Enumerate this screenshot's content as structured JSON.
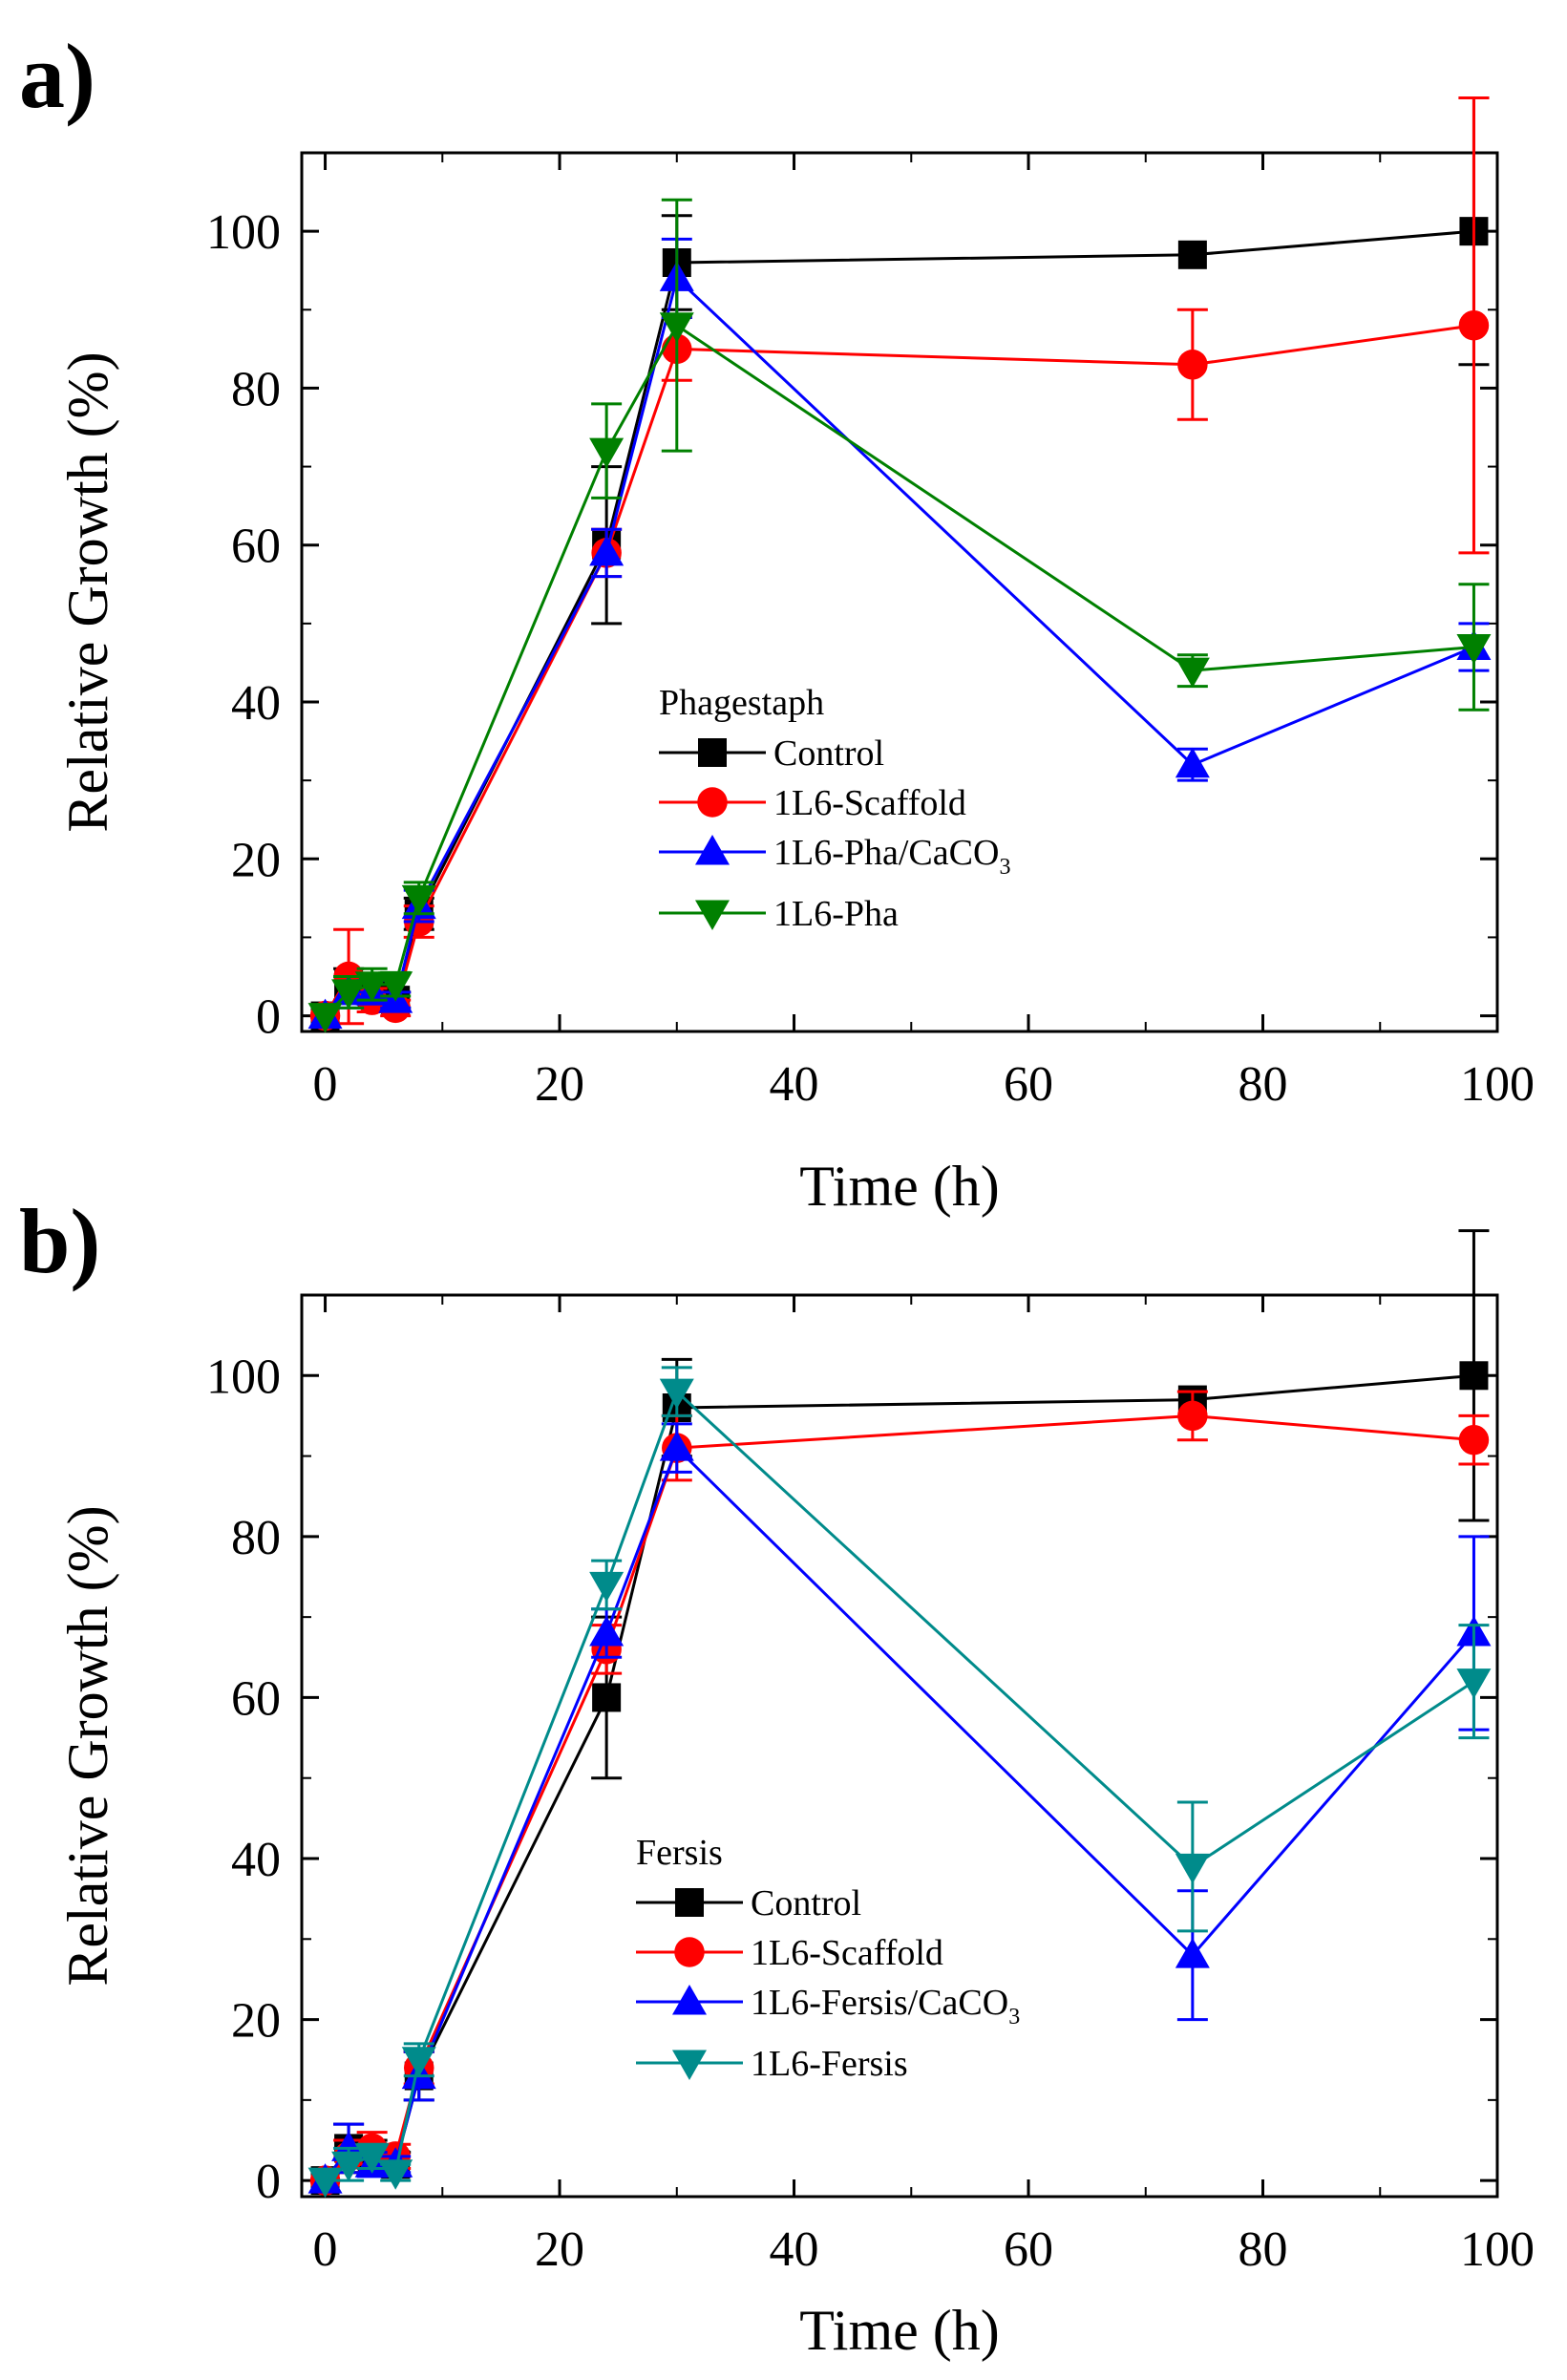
{
  "chart_data": [
    {
      "type": "line",
      "panel_label": "a)",
      "xlabel": "Time (h)",
      "ylabel": "Relative Growth (%)",
      "xlim": [
        -2,
        100
      ],
      "ylim": [
        -2,
        110
      ],
      "xticks": [
        0,
        20,
        40,
        60,
        80,
        100
      ],
      "yticks": [
        0,
        20,
        40,
        60,
        80,
        100
      ],
      "legend_title": "Phagestaph",
      "legend_position": "center-left",
      "series": [
        {
          "name": "Control",
          "label_main": "Control",
          "label_sub": "",
          "color": "#000000",
          "marker": "square",
          "x": [
            0,
            2,
            4,
            6,
            8,
            24,
            30,
            74,
            98
          ],
          "y": [
            0,
            4,
            3,
            2,
            13,
            60,
            96,
            97,
            100
          ],
          "err": [
            0.5,
            2,
            1.5,
            1,
            2,
            10,
            6,
            0,
            17
          ]
        },
        {
          "name": "1L6-Scaffold",
          "label_main": "1L6-Scaffold",
          "label_sub": "",
          "color": "#ff0000",
          "marker": "circle",
          "x": [
            0,
            2,
            4,
            6,
            8,
            24,
            30,
            74,
            98
          ],
          "y": [
            0,
            5,
            2,
            1,
            12,
            59,
            85,
            83,
            88
          ],
          "err": [
            0.5,
            6,
            1.5,
            1,
            2,
            3,
            4,
            7,
            29
          ]
        },
        {
          "name": "1L6-Pha/CaCO3",
          "label_main": "1L6-Pha/CaCO",
          "label_sub": "3",
          "color": "#0000ff",
          "marker": "triangle-up",
          "x": [
            0,
            2,
            4,
            6,
            8,
            24,
            30,
            74,
            98
          ],
          "y": [
            0,
            3,
            3,
            2,
            14,
            59,
            94,
            32,
            47
          ],
          "err": [
            0.5,
            2,
            1.5,
            1,
            2,
            3,
            5,
            2,
            3
          ]
        },
        {
          "name": "1L6-Pha",
          "label_main": "1L6-Pha",
          "label_sub": "",
          "color": "#008000",
          "marker": "triangle-down",
          "x": [
            0,
            2,
            4,
            6,
            8,
            24,
            30,
            74,
            98
          ],
          "y": [
            0,
            3,
            4,
            4,
            15,
            72,
            88,
            44,
            47
          ],
          "err": [
            0.5,
            2,
            2,
            1.5,
            2,
            6,
            16,
            2,
            8
          ]
        }
      ]
    },
    {
      "type": "line",
      "panel_label": "b)",
      "xlabel": "Time (h)",
      "ylabel": "Relative Growth (%)",
      "xlim": [
        -2,
        100
      ],
      "ylim": [
        -2,
        110
      ],
      "xticks": [
        0,
        20,
        40,
        60,
        80,
        100
      ],
      "yticks": [
        0,
        20,
        40,
        60,
        80,
        100
      ],
      "legend_title": "Fersis",
      "legend_position": "center-left",
      "series": [
        {
          "name": "Control",
          "label_main": "Control",
          "label_sub": "",
          "color": "#000000",
          "marker": "square",
          "x": [
            0,
            2,
            4,
            6,
            8,
            24,
            30,
            74,
            98
          ],
          "y": [
            0,
            4,
            3,
            2,
            13,
            60,
            96,
            97,
            100
          ],
          "err": [
            0.5,
            3,
            2,
            1.5,
            3,
            10,
            6,
            0,
            18
          ]
        },
        {
          "name": "1L6-Scaffold",
          "label_main": "1L6-Scaffold",
          "label_sub": "",
          "color": "#ff0000",
          "marker": "circle",
          "x": [
            0,
            2,
            4,
            6,
            8,
            24,
            30,
            74,
            98
          ],
          "y": [
            0,
            3,
            4,
            3,
            14,
            66,
            91,
            95,
            92
          ],
          "err": [
            0.5,
            2,
            2,
            1.5,
            2,
            3,
            4,
            3,
            3
          ]
        },
        {
          "name": "1L6-Fersis/CaCO3",
          "label_main": "1L6-Fersis/CaCO",
          "label_sub": "3",
          "color": "#0000ff",
          "marker": "triangle-up",
          "x": [
            0,
            2,
            4,
            6,
            8,
            24,
            30,
            74,
            98
          ],
          "y": [
            0,
            4,
            2,
            2,
            13,
            68,
            91,
            28,
            68
          ],
          "err": [
            0.5,
            3,
            1.5,
            1,
            3,
            3,
            3,
            8,
            12
          ]
        },
        {
          "name": "1L6-Fersis",
          "label_main": "1L6-Fersis",
          "label_sub": "",
          "color": "#008b8b",
          "marker": "triangle-down",
          "x": [
            0,
            2,
            4,
            6,
            8,
            24,
            30,
            74,
            98
          ],
          "y": [
            0,
            2,
            3,
            1,
            15,
            74,
            98,
            39,
            62
          ],
          "err": [
            0.5,
            2,
            1.5,
            1,
            2,
            3,
            3,
            8,
            7
          ]
        }
      ]
    }
  ]
}
